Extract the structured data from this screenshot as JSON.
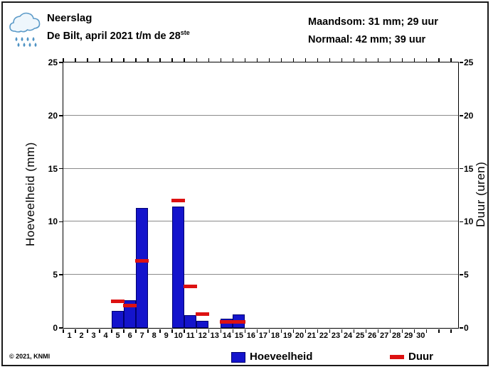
{
  "header": {
    "title": "Neerslag",
    "subtitle": "De Bilt, april 2021 t/m de 28",
    "subtitle_superscript": "ste",
    "stats_line1": "Maandsom: 31 mm; 29 uur",
    "stats_line2": "Normaal: 42 mm; 39 uur"
  },
  "footer": {
    "copyright": "© 2021, KNMI"
  },
  "legend": {
    "amount_label": "Hoeveelheid",
    "duration_label": "Duur"
  },
  "icons": {
    "header_icon": "rain-cloud-icon"
  },
  "colors": {
    "amount_blue": "#1414cc",
    "amount_border": "#000070",
    "duration_red": "#dd1111",
    "grid_gray": "#8a8a8a",
    "frame_black": "#1a1a1a"
  },
  "chart_data": {
    "type": "bar",
    "title": "Neerslag, De Bilt, april 2021 t/m de 28ste",
    "xlabel": "",
    "ylabel_left": "Hoeveelheid (mm)",
    "ylabel_right": "Duur (uren)",
    "ylim": [
      0,
      25
    ],
    "yticks": [
      0,
      5,
      10,
      15,
      20,
      25
    ],
    "x_range_days": 32.6,
    "grid": "horizontal",
    "legend_position": "bottom",
    "days": [
      1,
      2,
      3,
      4,
      5,
      6,
      7,
      8,
      9,
      10,
      11,
      12,
      13,
      14,
      15,
      16,
      17,
      18,
      19,
      20,
      21,
      22,
      23,
      24,
      25,
      26,
      27,
      28,
      29,
      30
    ],
    "series": [
      {
        "name": "Hoeveelheid",
        "unit": "mm",
        "axis": "left",
        "style": "bar",
        "color": "#1414cc",
        "values": [
          0,
          0,
          0,
          0,
          1.6,
          2.6,
          11.3,
          0,
          0,
          11.4,
          1.2,
          0.7,
          0,
          0.9,
          1.3,
          0,
          0,
          0,
          0,
          0,
          0,
          0,
          0,
          0,
          0,
          0,
          0,
          0,
          0,
          0
        ]
      },
      {
        "name": "Duur",
        "unit": "uur",
        "axis": "right",
        "style": "dash-marker",
        "color": "#dd1111",
        "values": [
          0,
          0,
          0,
          0,
          2.5,
          2.1,
          6.3,
          0,
          0,
          12.0,
          3.9,
          1.3,
          0,
          0.6,
          0.6,
          0,
          0,
          0,
          0,
          0,
          0,
          0,
          0,
          0,
          0,
          0,
          0,
          0,
          0,
          0
        ]
      }
    ],
    "totals": {
      "month_sum_mm": 31,
      "month_sum_hours": 29,
      "normal_mm": 42,
      "normal_hours": 39
    }
  }
}
